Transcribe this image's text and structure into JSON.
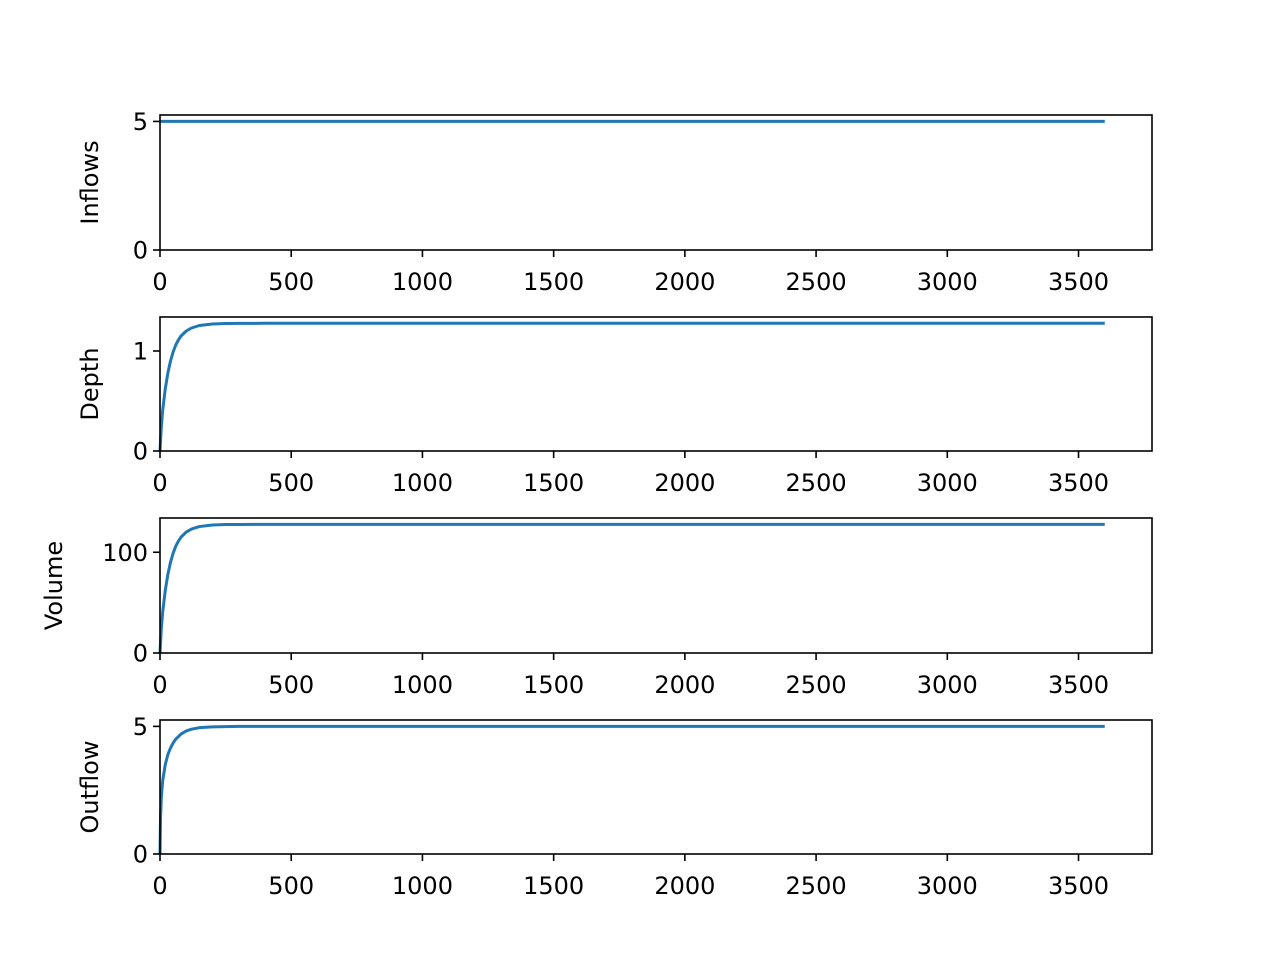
{
  "chart_data": [
    {
      "type": "line",
      "xlabel": "",
      "ylabel": "Inflows",
      "xlim": [
        0,
        3780
      ],
      "ylim": [
        0,
        5.25
      ],
      "xticks": [
        0,
        500,
        1000,
        1500,
        2000,
        2500,
        3000,
        3500
      ],
      "xtick_labels": [
        "0",
        "500",
        "1000",
        "1500",
        "2000",
        "2500",
        "3000",
        "3500"
      ],
      "yticks": [
        0,
        5
      ],
      "ytick_labels": [
        "0",
        "5"
      ],
      "grid": false,
      "series": [
        {
          "color": "#1f77b4",
          "x": [
            0,
            600,
            1200,
            1800,
            2400,
            3000,
            3600
          ],
          "y": [
            5,
            5,
            5,
            5,
            5,
            5,
            5
          ]
        }
      ]
    },
    {
      "type": "line",
      "xlabel": "",
      "ylabel": "Depth",
      "xlim": [
        0,
        3780
      ],
      "ylim": [
        0,
        1.34
      ],
      "xticks": [
        0,
        500,
        1000,
        1500,
        2000,
        2500,
        3000,
        3500
      ],
      "xtick_labels": [
        "0",
        "500",
        "1000",
        "1500",
        "2000",
        "2500",
        "3000",
        "3500"
      ],
      "yticks": [
        0,
        1
      ],
      "ytick_labels": [
        "0",
        "1"
      ],
      "grid": false,
      "series": [
        {
          "color": "#1f77b4",
          "x": [
            0,
            5,
            10,
            20,
            30,
            40,
            50,
            60,
            70,
            80,
            100,
            120,
            150,
            200,
            250,
            300,
            400,
            600,
            1000,
            2000,
            3000,
            3600
          ],
          "y": [
            0,
            0.24,
            0.4,
            0.62,
            0.78,
            0.9,
            0.99,
            1.06,
            1.11,
            1.15,
            1.2,
            1.23,
            1.255,
            1.27,
            1.275,
            1.276,
            1.277,
            1.277,
            1.277,
            1.277,
            1.277,
            1.277
          ]
        }
      ]
    },
    {
      "type": "line",
      "xlabel": "",
      "ylabel": "Volume",
      "xlim": [
        0,
        3780
      ],
      "ylim": [
        0,
        134
      ],
      "xticks": [
        0,
        500,
        1000,
        1500,
        2000,
        2500,
        3000,
        3500
      ],
      "xtick_labels": [
        "0",
        "500",
        "1000",
        "1500",
        "2000",
        "2500",
        "3000",
        "3500"
      ],
      "yticks": [
        0,
        100
      ],
      "ytick_labels": [
        "0",
        "100"
      ],
      "grid": false,
      "series": [
        {
          "color": "#1f77b4",
          "x": [
            0,
            5,
            10,
            20,
            30,
            40,
            50,
            60,
            70,
            80,
            100,
            120,
            150,
            200,
            250,
            300,
            400,
            600,
            1000,
            2000,
            3000,
            3600
          ],
          "y": [
            0,
            24,
            40,
            62,
            78,
            90,
            99,
            106,
            111,
            115,
            120,
            123,
            125.5,
            127,
            127.5,
            127.6,
            127.7,
            127.7,
            127.7,
            127.7,
            127.7,
            127.7
          ]
        }
      ]
    },
    {
      "type": "line",
      "xlabel": "",
      "ylabel": "Outflow",
      "xlim": [
        0,
        3780
      ],
      "ylim": [
        0,
        5.25
      ],
      "xticks": [
        0,
        500,
        1000,
        1500,
        2000,
        2500,
        3000,
        3500
      ],
      "xtick_labels": [
        "0",
        "500",
        "1000",
        "1500",
        "2000",
        "2500",
        "3000",
        "3500"
      ],
      "yticks": [
        0,
        5
      ],
      "ytick_labels": [
        "0",
        "5"
      ],
      "grid": false,
      "series": [
        {
          "color": "#1f77b4",
          "x": [
            0,
            2,
            5,
            10,
            20,
            30,
            40,
            50,
            60,
            80,
            100,
            120,
            150,
            200,
            250,
            300,
            400,
            600,
            1000,
            2000,
            3000,
            3600
          ],
          "y": [
            0,
            1.4,
            2.2,
            2.85,
            3.5,
            3.9,
            4.15,
            4.35,
            4.5,
            4.7,
            4.82,
            4.89,
            4.95,
            4.98,
            4.99,
            5.0,
            5.0,
            5.0,
            5.0,
            5.0,
            5.0,
            5.0
          ]
        }
      ]
    }
  ]
}
